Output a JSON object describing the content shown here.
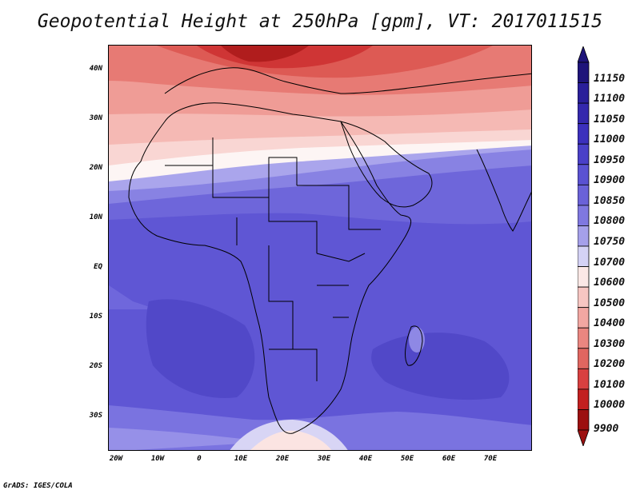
{
  "title": "Geopotential Height at 250hPa [gpm], VT: 2017011515",
  "footer": "GrADS: IGES/COLA",
  "latitudes": [
    "40N",
    "30N",
    "20N",
    "10N",
    "EQ",
    "10S",
    "20S",
    "30S"
  ],
  "longitudes": [
    "20W",
    "10W",
    "0",
    "10E",
    "20E",
    "30E",
    "40E",
    "50E",
    "60E",
    "70E"
  ],
  "colorbar": {
    "labels": [
      "11150",
      "11100",
      "11050",
      "11000",
      "10950",
      "10900",
      "10850",
      "10800",
      "10750",
      "10700",
      "10600",
      "10500",
      "10400",
      "10300",
      "10200",
      "10100",
      "10000",
      "9900"
    ],
    "colors": [
      "#1e147a",
      "#2a1f9a",
      "#3428ad",
      "#3c30bd",
      "#4a40c8",
      "#5a52d2",
      "#6a62d8",
      "#7f78e0",
      "#a5a0ea",
      "#d4d2f5",
      "#fbe8e6",
      "#f7c6c2",
      "#f2a7a2",
      "#ea8680",
      "#e06660",
      "#d84040",
      "#c22020",
      "#9c1010"
    ]
  }
}
